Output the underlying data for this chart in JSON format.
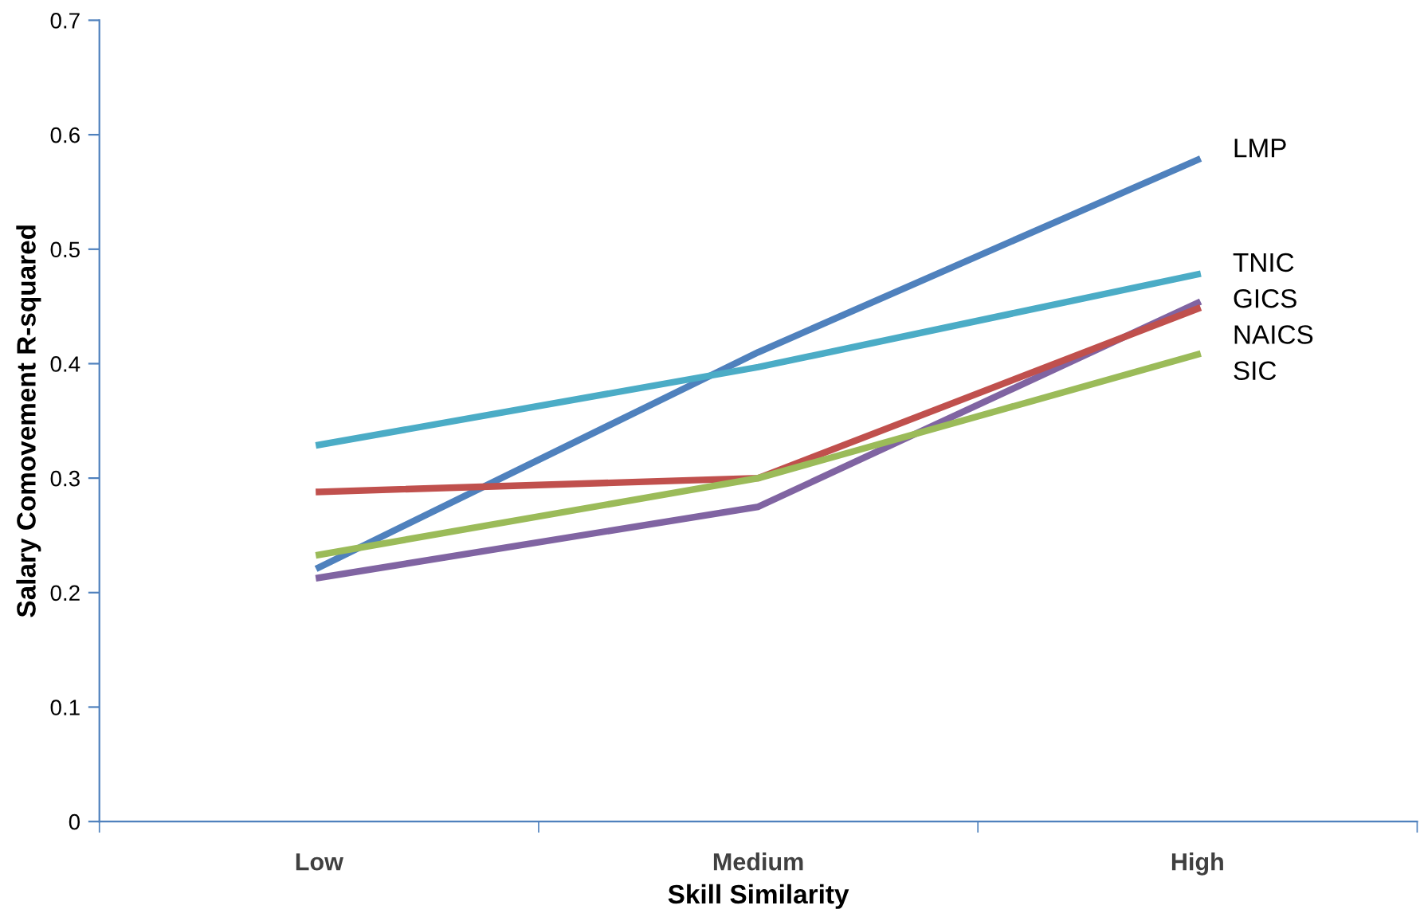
{
  "chart_data": {
    "type": "line",
    "xlabel": "Skill Similarity",
    "ylabel": "Salary Comovement R-squared",
    "categories": [
      "Low",
      "Medium",
      "High"
    ],
    "series": [
      {
        "name": "LMP",
        "color": "#4f81bd",
        "values": [
          0.222,
          0.41,
          0.578
        ]
      },
      {
        "name": "TNIC",
        "color": "#4bacc6",
        "values": [
          0.329,
          0.397,
          0.478
        ]
      },
      {
        "name": "GICS",
        "color": "#8064a2",
        "values": [
          0.213,
          0.275,
          0.453
        ]
      },
      {
        "name": "NAICS",
        "color": "#c0504d",
        "values": [
          0.288,
          0.3,
          0.448
        ]
      },
      {
        "name": "SIC",
        "color": "#9bbb59",
        "values": [
          0.233,
          0.3,
          0.408
        ]
      }
    ],
    "ylim": [
      0,
      0.7
    ],
    "yticks": [
      0,
      0.1,
      0.2,
      0.3,
      0.4,
      0.5,
      0.6,
      0.7
    ],
    "grid": false,
    "legend": false,
    "marker": "none",
    "line_style": "solid"
  }
}
